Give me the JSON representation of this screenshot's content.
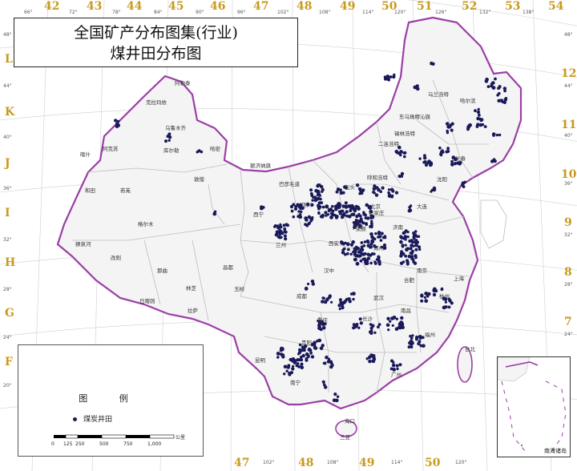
{
  "title": {
    "line1": "全国矿产分布图集(行业)",
    "line2": "煤井田分布图"
  },
  "legend": {
    "heading": "图 例",
    "item_label": "煤炭井田",
    "item_color": "#1a1a5a",
    "scale_ticks": [
      "0",
      "125",
      "250",
      "500",
      "750",
      "1,000"
    ],
    "scale_unit": "公里"
  },
  "inset_label": "南海诸岛",
  "top_zones": [
    "42",
    "43",
    "44",
    "45",
    "46",
    "47",
    "48",
    "49",
    "50",
    "51",
    "52",
    "53",
    "54"
  ],
  "bottom_zones": [
    "47",
    "48",
    "49",
    "50"
  ],
  "left_rows": [
    "L",
    "K",
    "J",
    "I",
    "H",
    "G",
    "F"
  ],
  "right_rows": [
    "12",
    "11",
    "10",
    "9",
    "8",
    "7"
  ],
  "top_degrees": [
    "66°",
    "72°",
    "78°",
    "84°",
    "90°",
    "96°",
    "102°",
    "108°",
    "114°",
    "120°",
    "126°",
    "132°",
    "138°"
  ],
  "bottom_degrees": [
    "102°",
    "108°",
    "114°",
    "120°"
  ],
  "left_degrees": [
    "48°",
    "44°",
    "40°",
    "36°",
    "32°",
    "28°",
    "24°",
    "20°"
  ],
  "right_degrees": [
    "48°",
    "44°",
    "40°",
    "36°",
    "32°",
    "28°",
    "24°"
  ],
  "cities": [
    "阿勒泰",
    "克拉玛依",
    "乌鲁木齐",
    "库尔勒",
    "哈密",
    "喀什",
    "阿克苏",
    "和田",
    "若羌",
    "敦煌",
    "格尔木",
    "拉萨",
    "日喀则",
    "那曲",
    "玉树",
    "昌都",
    "西宁",
    "兰州",
    "银川",
    "呼和浩特",
    "包头",
    "额济纳旗",
    "巴彦毛道",
    "二连浩特",
    "锡林浩特",
    "东乌珠穆沁旗",
    "乌兰浩特",
    "哈尔滨",
    "北京",
    "天津",
    "石家庄",
    "太原",
    "济南",
    "郑州",
    "西安",
    "汉中",
    "成都",
    "重庆",
    "贵阳",
    "昆明",
    "南宁",
    "长沙",
    "武汉",
    "南昌",
    "福州",
    "杭州",
    "上海",
    "南京",
    "合肥",
    "广州",
    "海口",
    "三亚",
    "台北",
    "长春",
    "沈阳",
    "大连",
    "林芝",
    "狮泉河",
    "改则"
  ],
  "colors": {
    "border": "#9b3fa6",
    "province": "#bdbdbd",
    "land": "#f4f4f4",
    "sea": "#ffffff",
    "dot": "#1a1a5a",
    "grid_label": "#c89a1c"
  }
}
